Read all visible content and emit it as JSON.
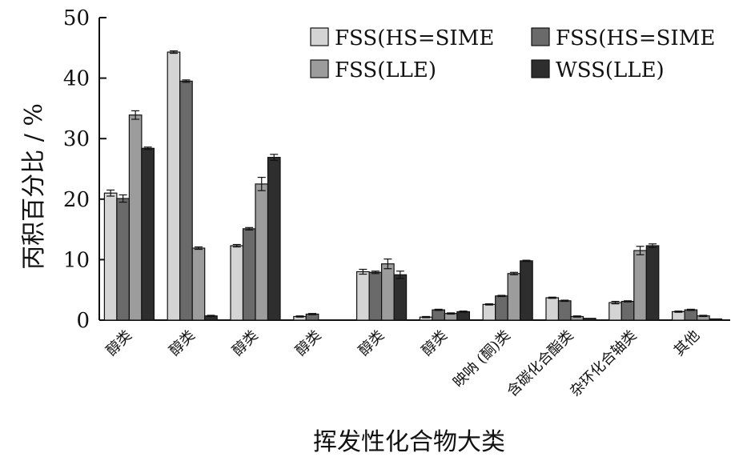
{
  "chart_data": {
    "type": "bar",
    "xlabel": "挥发性化合物大类",
    "ylabel": "丙积百分比 / %",
    "ylim": [
      0,
      50
    ],
    "yticks": [
      "0",
      "10",
      "20",
      "30",
      "40",
      "50"
    ],
    "grid": false,
    "legend_position": "top-right",
    "error_bars": true,
    "categories": [
      "醇类",
      "醇类",
      "醇类",
      "醇类",
      "醇类",
      "醇类",
      "映呐 (酮)类",
      "含碳化合酯类",
      "杂环化合轴类",
      "其他"
    ],
    "series": [
      {
        "name": "FSS(HS=SIME",
        "color": "#d4d4d4",
        "values": [
          21.0,
          44.3,
          12.3,
          0.6,
          8.0,
          0.5,
          2.6,
          3.7,
          2.9,
          1.4
        ],
        "errors": [
          0.5,
          0.2,
          0.2,
          0.1,
          0.4,
          0.1,
          0.1,
          0.1,
          0.2,
          0.1
        ]
      },
      {
        "name": "FSS(HS=SIME",
        "color": "#6a6a6a",
        "values": [
          20.1,
          39.5,
          15.1,
          1.0,
          7.9,
          1.7,
          4.0,
          3.2,
          3.1,
          1.7
        ],
        "errors": [
          0.6,
          0.2,
          0.2,
          0.1,
          0.2,
          0.1,
          0.1,
          0.1,
          0.1,
          0.1
        ]
      },
      {
        "name": "FSS(LLE)",
        "color": "#9c9c9c",
        "values": [
          33.9,
          11.9,
          22.5,
          0.0,
          9.3,
          1.1,
          7.7,
          0.6,
          11.5,
          0.7
        ],
        "errors": [
          0.7,
          0.2,
          1.1,
          0.0,
          0.8,
          0.1,
          0.2,
          0.1,
          0.7,
          0.1
        ]
      },
      {
        "name": "WSS(LLE)",
        "color": "#2e2e2e",
        "values": [
          28.4,
          0.7,
          26.9,
          0.0,
          7.5,
          1.4,
          9.8,
          0.3,
          12.3,
          0.2
        ],
        "errors": [
          0.2,
          0.1,
          0.5,
          0.0,
          0.6,
          0.1,
          0.1,
          0.0,
          0.3,
          0.0
        ]
      }
    ]
  }
}
